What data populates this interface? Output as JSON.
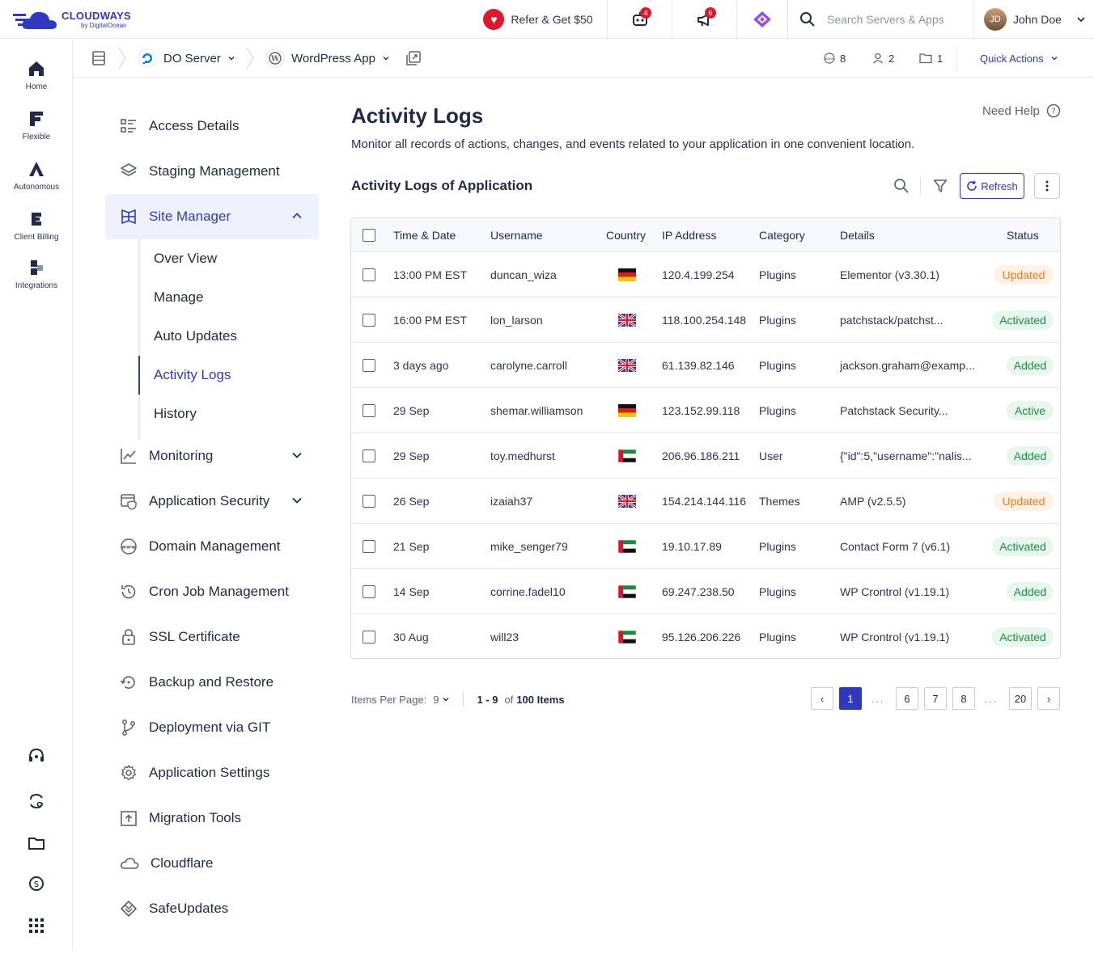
{
  "brand": {
    "name": "CLOUDWAYS",
    "sub": "by DigitalOcean"
  },
  "topbar": {
    "refer_label": "Refer & Get $50",
    "bot_badge": "4",
    "announce_badge": "6",
    "search_placeholder": "Search Servers & Apps",
    "user_name": "John Doe"
  },
  "rail": {
    "items": [
      {
        "label": "Home",
        "icon": "home-icon"
      },
      {
        "label": "Flexible",
        "icon": "flexible-icon"
      },
      {
        "label": "Autonomous",
        "icon": "autonomous-icon"
      },
      {
        "label": "Client Billing",
        "icon": "client-billing-icon"
      },
      {
        "label": "Integrations",
        "icon": "integrations-icon"
      }
    ],
    "bottom_icons": [
      "support-icon",
      "transfer-icon",
      "folder-icon",
      "billing-icon",
      "apps-grid-icon"
    ]
  },
  "crumbs": {
    "server": "DO Server",
    "app": "WordPress App",
    "stat_www": "8",
    "stat_users": "2",
    "stat_folders": "1",
    "quick_actions": "Quick Actions"
  },
  "menu": {
    "access": "Access Details",
    "staging": "Staging Management",
    "site_manager": "Site Manager",
    "sub": {
      "overview": "Over View",
      "manage": "Manage",
      "auto_updates": "Auto Updates",
      "activity_logs": "Activity Logs",
      "history": "History"
    },
    "monitoring": "Monitoring",
    "app_security": "Application Security",
    "domain": "Domain Management",
    "cron": "Cron Job Management",
    "ssl": "SSL Certificate",
    "backup": "Backup and Restore",
    "git": "Deployment via GIT",
    "settings": "Application Settings",
    "migration": "Migration Tools",
    "cloudflare": "Cloudflare",
    "safeupdates": "SafeUpdates"
  },
  "page": {
    "title": "Activity Logs",
    "description": "Monitor all records of actions, changes, and events related to your application in one convenient location.",
    "help": "Need Help",
    "section_title": "Activity Logs of Application",
    "refresh": "Refresh"
  },
  "table": {
    "headers": {
      "time": "Time & Date",
      "username": "Username",
      "country": "Country",
      "ip": "IP Address",
      "category": "Category",
      "details": "Details",
      "status": "Status"
    },
    "rows": [
      {
        "time": "13:00 PM EST",
        "username": "duncan_wiza",
        "country": "de",
        "ip": "120.4.199.254",
        "category": "Plugins",
        "details": "Elementor (v3.30.1)",
        "status": "Updated",
        "tone": "orange"
      },
      {
        "time": "16:00 PM EST",
        "username": "lon_larson",
        "country": "gb",
        "ip": "118.100.254.148",
        "category": "Plugins",
        "details": "patchstack/patchst...",
        "status": "Activated",
        "tone": "green"
      },
      {
        "time": "3 days ago",
        "username": "carolyne.carroll",
        "country": "gb",
        "ip": "61.139.82.146",
        "category": "Plugins",
        "details": "jackson.graham@examp...",
        "status": "Added",
        "tone": "green"
      },
      {
        "time": "29 Sep",
        "username": "shemar.williamson",
        "country": "de",
        "ip": "123.152.99.118",
        "category": "Plugins",
        "details": "Patchstack Security...",
        "status": "Active",
        "tone": "green"
      },
      {
        "time": "29 Sep",
        "username": "toy.medhurst",
        "country": "ae",
        "ip": "206.96.186.211",
        "category": "User",
        "details": "{\"id\":5,\"username\":\"nalis...",
        "status": "Added",
        "tone": "green"
      },
      {
        "time": "26 Sep",
        "username": "izaiah37",
        "country": "gb",
        "ip": "154.214.144.116",
        "category": "Themes",
        "details": "AMP (v2.5.5)",
        "status": "Updated",
        "tone": "orange"
      },
      {
        "time": "21 Sep",
        "username": "mike_senger79",
        "country": "ae",
        "ip": "19.10.17.89",
        "category": "Plugins",
        "details": "Contact Form 7 (v6.1)",
        "status": "Activated",
        "tone": "green"
      },
      {
        "time": "14 Sep",
        "username": "corrine.fadel10",
        "country": "ae",
        "ip": "69.247.238.50",
        "category": "Plugins",
        "details": "WP Crontrol (v1.19.1)",
        "status": "Added",
        "tone": "green"
      },
      {
        "time": "30 Aug",
        "username": "will23",
        "country": "ae",
        "ip": "95.126.206.226",
        "category": "Plugins",
        "details": "WP Crontrol (v1.19.1)",
        "status": "Activated",
        "tone": "green"
      }
    ]
  },
  "pagination": {
    "per_page_label": "Items Per Page:",
    "per_page": "9",
    "range": "1 - 9",
    "of": "of",
    "total": "100 Items",
    "prev": "‹",
    "next": "›",
    "pages": [
      "1",
      "6",
      "7",
      "8",
      "20"
    ],
    "current": "1",
    "ellipsis": "..."
  },
  "colors": {
    "accent": "#2f39bf",
    "orange": "#f07b1c",
    "green": "#1f8a45",
    "heart": "#e0182d"
  }
}
